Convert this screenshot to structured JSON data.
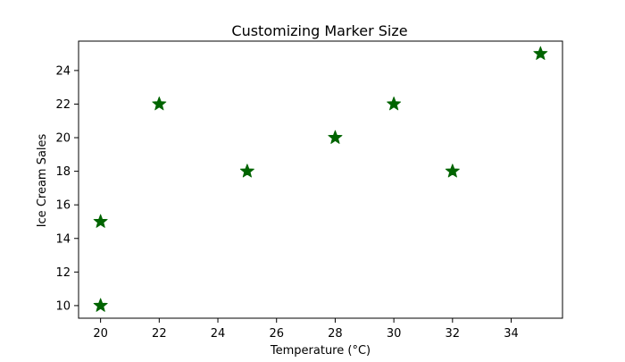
{
  "chart_data": {
    "type": "scatter",
    "title": "Customizing Marker Size",
    "xlabel": "Temperature (°C)",
    "ylabel": "Ice Cream Sales",
    "x": [
      20,
      22,
      25,
      28,
      30,
      32,
      35,
      20
    ],
    "y": [
      10,
      22,
      18,
      20,
      22,
      18,
      25,
      15
    ],
    "xlim": [
      19.25,
      35.75
    ],
    "ylim": [
      9.25,
      25.75
    ],
    "xticks": [
      20,
      22,
      24,
      26,
      28,
      30,
      32,
      34
    ],
    "yticks": [
      10,
      12,
      14,
      16,
      18,
      20,
      22,
      24
    ],
    "marker": "star",
    "marker_color": "#006400",
    "grid": false
  }
}
